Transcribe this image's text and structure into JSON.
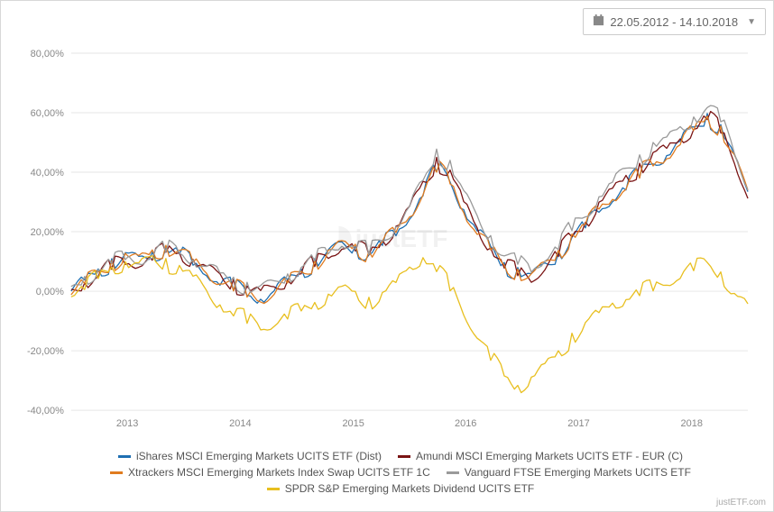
{
  "dateRange": {
    "label": "22.05.2012 - 14.10.2018"
  },
  "chart": {
    "type": "line",
    "credit": "justETF.com",
    "watermark": "justETF",
    "background_color": "#ffffff",
    "grid_color": "#e6e6e6",
    "axis_color": "#888888",
    "label_fontsize": 11,
    "ylim": [
      -40,
      80
    ],
    "ytick_step": 20,
    "ylabel_format": "{v},00%",
    "x_labels": [
      "2013",
      "2014",
      "2015",
      "2016",
      "2017",
      "2018"
    ],
    "x_ticks": [
      0.083,
      0.25,
      0.417,
      0.583,
      0.75,
      0.917
    ],
    "line_width": 1.3,
    "x_samples": [
      0,
      0.02,
      0.04,
      0.06,
      0.08,
      0.1,
      0.12,
      0.14,
      0.16,
      0.18,
      0.2,
      0.22,
      0.24,
      0.26,
      0.28,
      0.3,
      0.32,
      0.34,
      0.36,
      0.38,
      0.4,
      0.42,
      0.44,
      0.46,
      0.48,
      0.5,
      0.52,
      0.54,
      0.56,
      0.58,
      0.6,
      0.62,
      0.64,
      0.66,
      0.68,
      0.7,
      0.72,
      0.74,
      0.76,
      0.78,
      0.8,
      0.82,
      0.84,
      0.86,
      0.88,
      0.9,
      0.92,
      0.94,
      0.96,
      0.98,
      1.0
    ],
    "series": [
      {
        "name": "iShares MSCI Emerging Markets UCITS ETF (Dist)",
        "color": "#1f6fb2",
        "y": [
          0,
          3,
          6,
          9,
          11,
          10,
          12,
          14,
          13,
          10,
          7,
          4,
          2,
          0,
          -2,
          0,
          3,
          6,
          9,
          12,
          15,
          14,
          12,
          16,
          20,
          26,
          34,
          42,
          38,
          28,
          20,
          14,
          8,
          6,
          4,
          8,
          12,
          18,
          22,
          28,
          32,
          36,
          40,
          44,
          46,
          50,
          54,
          58,
          54,
          44,
          32
        ]
      },
      {
        "name": "Amundi MSCI Emerging Markets UCITS ETF - EUR (C)",
        "color": "#7a1414",
        "y": [
          0,
          3,
          6,
          9,
          11,
          10,
          12,
          14,
          13,
          10,
          7,
          4,
          2,
          0,
          -1,
          1,
          4,
          7,
          10,
          13,
          16,
          15,
          13,
          17,
          21,
          27,
          35,
          43,
          39,
          29,
          21,
          15,
          9,
          7,
          5,
          9,
          13,
          19,
          23,
          29,
          33,
          37,
          41,
          45,
          47,
          51,
          55,
          59,
          55,
          45,
          33
        ]
      },
      {
        "name": "Xtrackers MSCI Emerging Markets Index Swap UCITS ETF 1C",
        "color": "#e07b1f",
        "y": [
          0,
          3,
          6,
          9,
          11,
          10,
          12,
          14,
          13,
          10,
          7,
          4,
          2,
          0,
          -2,
          0,
          3,
          6,
          9,
          12,
          15,
          14,
          12,
          16,
          20,
          26,
          34,
          42,
          38,
          28,
          20,
          14,
          8,
          6,
          4,
          8,
          12,
          18,
          22,
          28,
          32,
          36,
          40,
          44,
          46,
          50,
          54,
          58,
          54,
          44,
          32
        ]
      },
      {
        "name": "Vanguard FTSE Emerging Markets UCITS ETF",
        "color": "#9a9a9a",
        "y": [
          0,
          4,
          7,
          10,
          12,
          11,
          13,
          15,
          14,
          11,
          8,
          5,
          3,
          1,
          0,
          2,
          5,
          8,
          11,
          14,
          17,
          16,
          14,
          18,
          22,
          28,
          36,
          46,
          42,
          32,
          24,
          18,
          12,
          10,
          8,
          12,
          16,
          22,
          26,
          32,
          36,
          40,
          44,
          48,
          50,
          54,
          58,
          62,
          58,
          48,
          36
        ]
      },
      {
        "name": "SPDR S&P Emerging Markets Dividend UCITS ETF",
        "color": "#e8bf1f",
        "y": [
          0,
          2,
          5,
          8,
          9,
          8,
          10,
          9,
          7,
          4,
          0,
          -4,
          -7,
          -9,
          -11,
          -10,
          -8,
          -6,
          -4,
          -2,
          0,
          -2,
          -4,
          -2,
          2,
          8,
          12,
          8,
          2,
          -6,
          -14,
          -22,
          -28,
          -32,
          -30,
          -26,
          -22,
          -16,
          -12,
          -8,
          -4,
          -2,
          0,
          2,
          4,
          6,
          8,
          10,
          6,
          -2,
          -6
        ]
      }
    ]
  }
}
